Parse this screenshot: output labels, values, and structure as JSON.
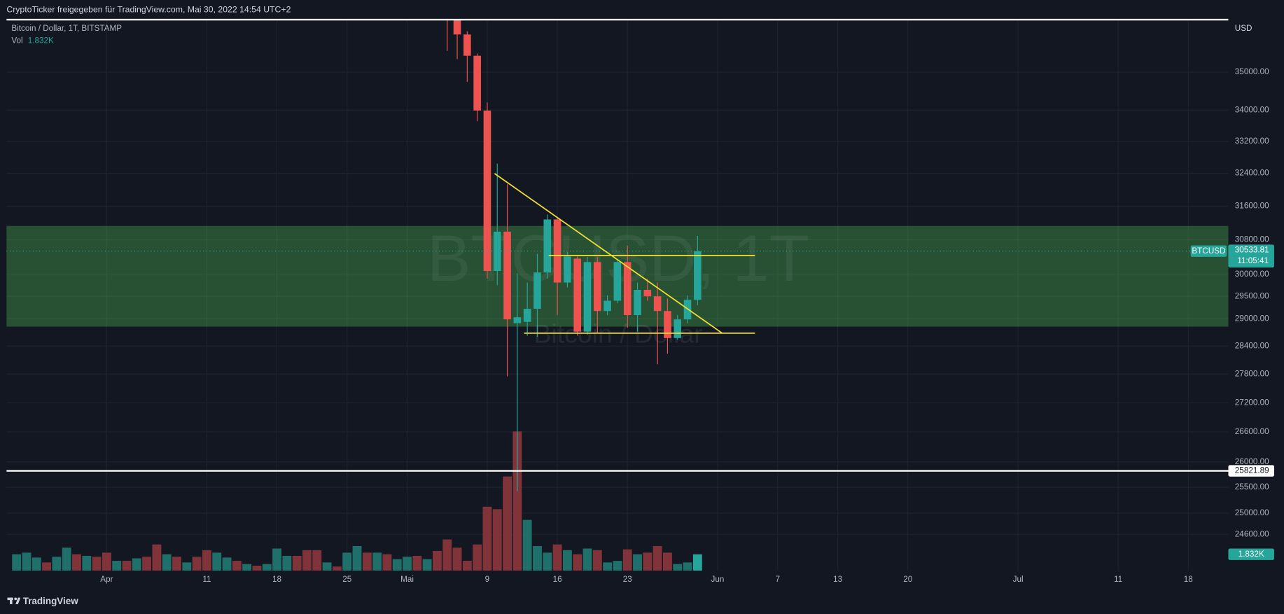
{
  "header": "CryptoTicker freigegeben für TradingView.com, Mai 30, 2022 14:54 UTC+2",
  "footer": "TradingView",
  "chart_data": {
    "type": "candlestick",
    "title": "Bitcoin / Dollar, 1T, BITSTAMP",
    "unit": "USD",
    "symbol": "BTCUSD",
    "watermark": "BTCUSD, 1T",
    "watermark_sub": "Bitcoin / Dollar",
    "up_color": "#26a69a",
    "down_color": "#ef5350",
    "candles": {
      "x": [
        "2022-05-05",
        "2022-05-06",
        "2022-05-07",
        "2022-05-08",
        "2022-05-09",
        "2022-05-10",
        "2022-05-11",
        "2022-05-12",
        "2022-05-13",
        "2022-05-14",
        "2022-05-15",
        "2022-05-16",
        "2022-05-17",
        "2022-05-18",
        "2022-05-19",
        "2022-05-20",
        "2022-05-21",
        "2022-05-22",
        "2022-05-23",
        "2022-05-24",
        "2022-05-25",
        "2022-05-26",
        "2022-05-27",
        "2022-05-28",
        "2022-05-29",
        "2022-05-30"
      ],
      "open": [
        39700,
        36550,
        36020,
        35440,
        33990,
        30075,
        30990,
        28900,
        28930,
        29220,
        30040,
        31280,
        29810,
        30360,
        28715,
        30280,
        29170,
        29400,
        30280,
        29080,
        29645,
        29500,
        29170,
        28575,
        28985,
        29420
      ],
      "high": [
        39850,
        36650,
        36110,
        35500,
        34200,
        32640,
        32130,
        30020,
        29810,
        30470,
        31400,
        31330,
        30510,
        30410,
        30400,
        30400,
        29520,
        30320,
        30660,
        29810,
        29900,
        29810,
        29450,
        29080,
        29520,
        30890
      ],
      "low": [
        35570,
        35350,
        34740,
        33715,
        29900,
        29750,
        27750,
        25425,
        28625,
        28600,
        29900,
        29080,
        29700,
        28625,
        28650,
        28690,
        29080,
        29350,
        28800,
        28715,
        29400,
        28010,
        28235,
        28540,
        28900,
        29300
      ],
      "close": [
        36550,
        36020,
        35440,
        33990,
        30075,
        30990,
        28985,
        29030,
        29220,
        30040,
        31280,
        29810,
        30410,
        28715,
        30280,
        29170,
        29400,
        30280,
        29080,
        29645,
        29500,
        29170,
        28575,
        28985,
        29420,
        30533.81
      ]
    },
    "last_price": 30533.81,
    "countdown": "11:05:41",
    "level": 25821.89,
    "volume": {
      "name": "Vol",
      "last_value_label": "1.832K",
      "x": [
        "2022-03-23",
        "2022-03-24",
        "2022-03-25",
        "2022-03-26",
        "2022-03-27",
        "2022-03-28",
        "2022-03-29",
        "2022-03-30",
        "2022-03-31",
        "2022-04-01",
        "2022-04-02",
        "2022-04-03",
        "2022-04-04",
        "2022-04-05",
        "2022-04-06",
        "2022-04-07",
        "2022-04-08",
        "2022-04-09",
        "2022-04-10",
        "2022-04-11",
        "2022-04-12",
        "2022-04-13",
        "2022-04-14",
        "2022-04-15",
        "2022-04-16",
        "2022-04-17",
        "2022-04-18",
        "2022-04-19",
        "2022-04-20",
        "2022-04-21",
        "2022-04-22",
        "2022-04-23",
        "2022-04-24",
        "2022-04-25",
        "2022-04-26",
        "2022-04-27",
        "2022-04-28",
        "2022-04-29",
        "2022-04-30",
        "2022-05-01",
        "2022-05-02",
        "2022-05-03",
        "2022-05-04",
        "2022-05-05",
        "2022-05-06",
        "2022-05-07",
        "2022-05-08",
        "2022-05-09",
        "2022-05-10",
        "2022-05-11",
        "2022-05-12",
        "2022-05-13",
        "2022-05-14",
        "2022-05-15",
        "2022-05-16",
        "2022-05-17",
        "2022-05-18",
        "2022-05-19",
        "2022-05-20",
        "2022-05-21",
        "2022-05-22",
        "2022-05-23",
        "2022-05-24",
        "2022-05-25",
        "2022-05-26",
        "2022-05-27",
        "2022-05-28",
        "2022-05-29",
        "2022-05-30"
      ],
      "values": [
        1840,
        2020,
        1470,
        920,
        1560,
        2580,
        1840,
        1660,
        1560,
        2020,
        1100,
        1100,
        1380,
        1560,
        2940,
        1840,
        1560,
        920,
        1560,
        2300,
        2020,
        1470,
        1100,
        740,
        550,
        740,
        2480,
        1660,
        1660,
        2300,
        2300,
        920,
        460,
        2020,
        2760,
        2020,
        2020,
        1840,
        1290,
        1560,
        1660,
        1290,
        2210,
        3500,
        2580,
        1100,
        2940,
        7180,
        6900,
        10580,
        15640,
        5700,
        2760,
        2020,
        2940,
        2300,
        1840,
        2480,
        2300,
        920,
        1100,
        2390,
        1840,
        2020,
        2760,
        2020,
        740,
        920,
        1832
      ],
      "colors": [
        "#1f6f6a",
        "#1f6f6a",
        "#1f6f6a",
        "#803439",
        "#1f6f6a",
        "#1f6f6a",
        "#803439",
        "#1f6f6a",
        "#803439",
        "#803439",
        "#1f6f6a",
        "#803439",
        "#1f6f6a",
        "#803439",
        "#803439",
        "#1f6f6a",
        "#803439",
        "#1f6f6a",
        "#803439",
        "#803439",
        "#1f6f6a",
        "#1f6f6a",
        "#803439",
        "#1f6f6a",
        "#803439",
        "#1f6f6a",
        "#1f6f6a",
        "#1f6f6a",
        "#803439",
        "#803439",
        "#803439",
        "#1f6f6a",
        "#803439",
        "#1f6f6a",
        "#1f6f6a",
        "#803439",
        "#1f6f6a",
        "#803439",
        "#1f6f6a",
        "#1f6f6a",
        "#803439",
        "#1f6f6a",
        "#803439",
        "#803439",
        "#803439",
        "#803439",
        "#803439",
        "#803439",
        "#803439",
        "#803439",
        "#803439",
        "#1f6f6a",
        "#1f6f6a",
        "#1f6f6a",
        "#803439",
        "#1f6f6a",
        "#803439",
        "#1f6f6a",
        "#803439",
        "#1f6f6a",
        "#1f6f6a",
        "#803439",
        "#1f6f6a",
        "#803439",
        "#803439",
        "#803439",
        "#1f6f6a",
        "#1f6f6a",
        "#26a69a"
      ]
    },
    "log": true,
    "grid": true,
    "ylim": [
      23930,
      36430
    ],
    "yticks": [
      {
        "value": 35000,
        "label": "35000.00"
      },
      {
        "value": 34000,
        "label": "34000.00"
      },
      {
        "value": 33200,
        "label": "33200.00"
      },
      {
        "value": 32400,
        "label": "32400.00"
      },
      {
        "value": 31600,
        "label": "31600.00"
      },
      {
        "value": 30800,
        "label": "30800.00"
      },
      {
        "value": 30000,
        "label": "30000.00"
      },
      {
        "value": 29500,
        "label": "29500.00"
      },
      {
        "value": 29000,
        "label": "29000.00"
      },
      {
        "value": 28400,
        "label": "28400.00"
      },
      {
        "value": 27800,
        "label": "27800.00"
      },
      {
        "value": 27200,
        "label": "27200.00"
      },
      {
        "value": 26600,
        "label": "26600.00"
      },
      {
        "value": 26000,
        "label": "26000.00"
      },
      {
        "value": 25500,
        "label": "25500.00"
      },
      {
        "value": 25000,
        "label": "25000.00"
      },
      {
        "value": 24600,
        "label": "24600.00"
      }
    ],
    "xlim": [
      "2022-03-22",
      "2022-07-22"
    ],
    "xticks": [
      {
        "value": "2022-04-01",
        "label": "Apr"
      },
      {
        "value": "2022-04-11",
        "label": "11"
      },
      {
        "value": "2022-04-18",
        "label": "18"
      },
      {
        "value": "2022-04-25",
        "label": "25"
      },
      {
        "value": "2022-05-01",
        "label": "Mai"
      },
      {
        "value": "2022-05-09",
        "label": "9"
      },
      {
        "value": "2022-05-16",
        "label": "16"
      },
      {
        "value": "2022-05-23",
        "label": "23"
      },
      {
        "value": "2022-06-01",
        "label": "Jun"
      },
      {
        "value": "2022-06-07",
        "label": "7"
      },
      {
        "value": "2022-06-13",
        "label": "13"
      },
      {
        "value": "2022-06-20",
        "label": "20"
      },
      {
        "value": "2022-07-01",
        "label": "Jul"
      },
      {
        "value": "2022-07-11",
        "label": "11"
      },
      {
        "value": "2022-07-18",
        "label": "18"
      }
    ]
  }
}
